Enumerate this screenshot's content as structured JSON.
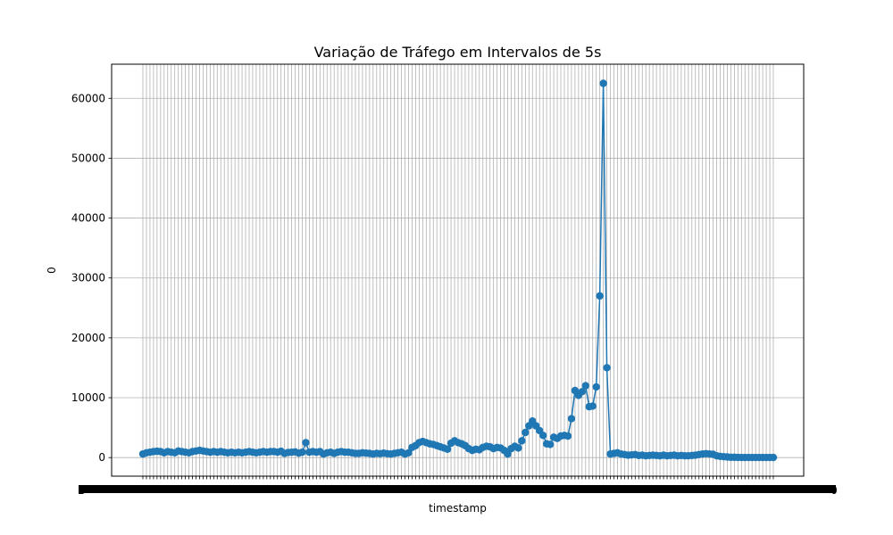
{
  "chart_data": {
    "type": "line",
    "title": "Variação de Tráfego em Intervalos de 5s",
    "xlabel": "timestamp",
    "ylabel": "0",
    "ylim": [
      -3100,
      65700
    ],
    "y_ticks": [
      0,
      10000,
      20000,
      30000,
      40000,
      50000,
      60000
    ],
    "grid": true,
    "marker": "circle",
    "color": "#1f77b4",
    "x_tick_labels_note": "dense overlapping timestamp labels (unreadable)",
    "x_tick_label_first": "2",
    "x_tick_label_last": "0",
    "series": [
      {
        "values": [
          600,
          800,
          900,
          1000,
          1050,
          1000,
          800,
          1000,
          900,
          800,
          1100,
          1000,
          900,
          800,
          1000,
          1100,
          1200,
          1100,
          1000,
          900,
          1000,
          900,
          1000,
          900,
          800,
          900,
          800,
          900,
          800,
          900,
          1000,
          900,
          800,
          900,
          1000,
          900,
          1000,
          1000,
          900,
          1050,
          700,
          850,
          900,
          950,
          750,
          900,
          2500,
          900,
          1000,
          900,
          1000,
          600,
          800,
          900,
          700,
          900,
          1000,
          900,
          900,
          800,
          700,
          700,
          800,
          750,
          700,
          600,
          700,
          650,
          750,
          650,
          600,
          700,
          800,
          900,
          600,
          800,
          1700,
          2000,
          2500,
          2700,
          2500,
          2300,
          2200,
          2000,
          1800,
          1600,
          1400,
          2400,
          2800,
          2500,
          2300,
          2000,
          1500,
          1200,
          1400,
          1300,
          1700,
          1900,
          1800,
          1500,
          1700,
          1600,
          1200,
          600,
          1500,
          1900,
          1600,
          2800,
          4200,
          5300,
          6100,
          5300,
          4500,
          3700,
          2300,
          2200,
          3400,
          3200,
          3600,
          3700,
          3600,
          6500,
          11200,
          10400,
          11000,
          12000,
          8500,
          8600,
          11800,
          27000,
          62500,
          15000,
          600,
          700,
          800,
          600,
          500,
          400,
          450,
          500,
          350,
          400,
          300,
          350,
          400,
          350,
          300,
          400,
          300,
          350,
          400,
          300,
          350,
          300,
          300,
          350,
          400,
          500,
          600,
          650,
          600,
          550,
          300,
          200,
          150,
          100,
          50,
          50,
          30,
          20,
          20,
          20,
          20,
          20,
          20,
          20,
          20,
          20,
          20
        ]
      }
    ]
  }
}
